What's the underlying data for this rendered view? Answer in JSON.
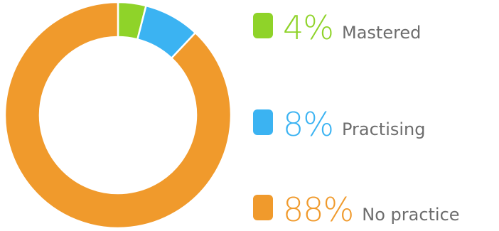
{
  "chart_data": {
    "type": "pie",
    "variant": "donut",
    "title": "",
    "start": "top",
    "direction": "clockwise",
    "slices": [
      {
        "label": "Mastered",
        "percent_label": "4%",
        "value": 4,
        "color": "#8fd329"
      },
      {
        "label": "Practising",
        "percent_label": "8%",
        "value": 8,
        "color": "#3bb3f2"
      },
      {
        "label": "No practice",
        "percent_label": "88%",
        "value": 88,
        "color": "#f09a2c"
      }
    ],
    "legend_placement": "right"
  }
}
